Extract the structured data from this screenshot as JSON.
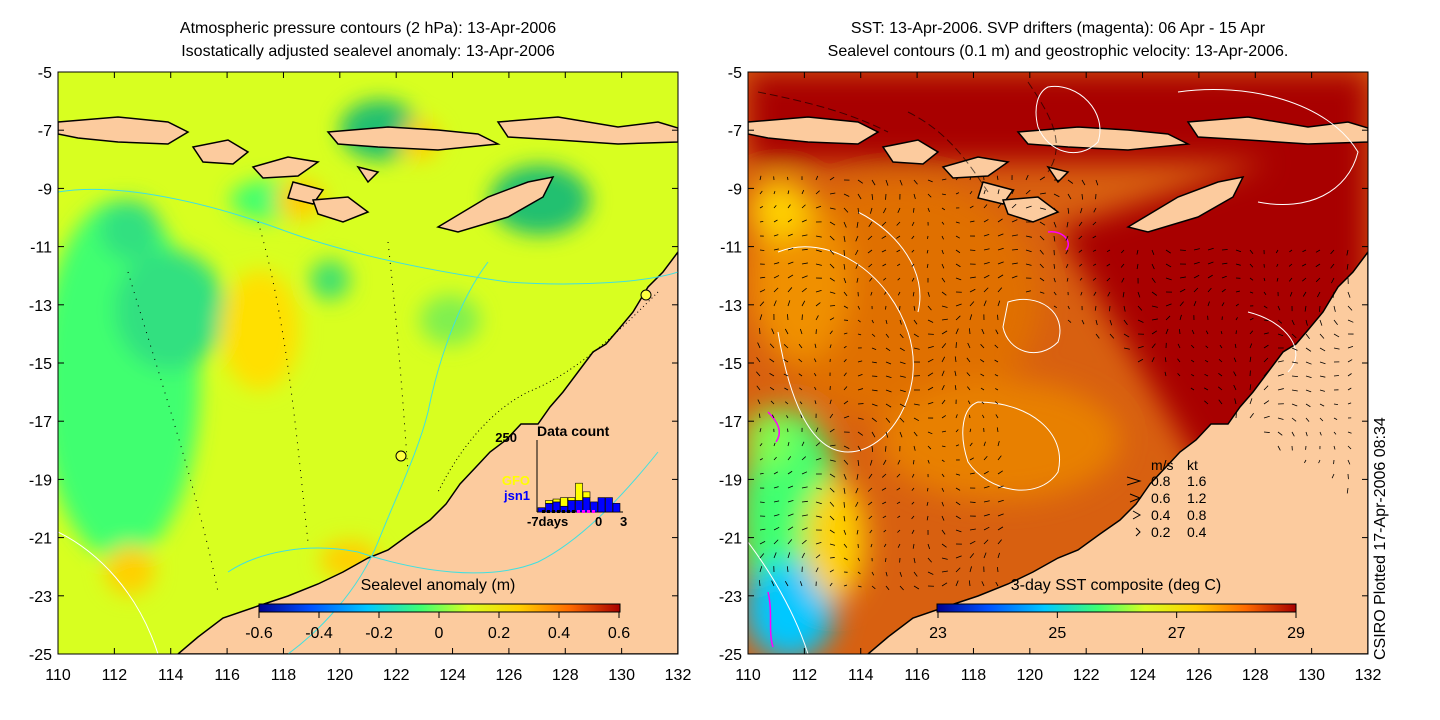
{
  "left_panel": {
    "title_line1": "Atmospheric pressure contours (2 hPa): 13-Apr-2006",
    "title_line2": "Isostatically adjusted sealevel anomaly: 13-Apr-2006",
    "colorbar_label": "Sealevel anomaly (m)",
    "colorbar_ticks": [
      "-0.6",
      "-0.4",
      "-0.2",
      "0",
      "0.2",
      "0.4",
      "0.6"
    ],
    "data_count": {
      "title": "Data count",
      "ymax_label": "250",
      "xaxis_labels": [
        "-7days",
        "0",
        "3"
      ],
      "legend": [
        {
          "name": "GFO",
          "color": "#ffff00"
        },
        {
          "name": "jsn1",
          "color": "#0000ff"
        }
      ],
      "bars": [
        {
          "day": -7,
          "jsn1": 15,
          "gfo": 0
        },
        {
          "day": -6,
          "jsn1": 30,
          "gfo": 10
        },
        {
          "day": -5,
          "jsn1": 35,
          "gfo": 10
        },
        {
          "day": -4,
          "jsn1": 20,
          "gfo": 30
        },
        {
          "day": -3,
          "jsn1": 40,
          "gfo": 10
        },
        {
          "day": -2,
          "jsn1": 40,
          "gfo": 60
        },
        {
          "day": -1,
          "jsn1": 50,
          "gfo": 20
        },
        {
          "day": 0,
          "jsn1": 35,
          "gfo": 0
        },
        {
          "day": 1,
          "jsn1": 50,
          "gfo": 0
        },
        {
          "day": 2,
          "jsn1": 50,
          "gfo": 0
        },
        {
          "day": 3,
          "jsn1": 30,
          "gfo": 0
        }
      ]
    }
  },
  "right_panel": {
    "title_line1": "SST: 13-Apr-2006. SVP drifters (magenta): 06 Apr - 15 Apr",
    "title_line2": "Sealevel contours (0.1 m) and geostrophic velocity: 13-Apr-2006.",
    "colorbar_label": "3-day SST composite (deg C)",
    "colorbar_ticks": [
      "23",
      "25",
      "27",
      "29"
    ],
    "velocity_legend": {
      "header_ms": "m/s",
      "header_kt": "kt",
      "rows": [
        {
          "ms": "0.8",
          "kt": "1.6"
        },
        {
          "ms": "0.6",
          "kt": "1.2"
        },
        {
          "ms": "0.4",
          "kt": "0.8"
        },
        {
          "ms": "0.2",
          "kt": "0.4"
        }
      ]
    }
  },
  "axes": {
    "lon_ticks": [
      "110",
      "112",
      "114",
      "116",
      "118",
      "120",
      "122",
      "124",
      "126",
      "128",
      "130",
      "132"
    ],
    "lat_ticks": [
      "-5",
      "-7",
      "-9",
      "-11",
      "-13",
      "-15",
      "-17",
      "-19",
      "-21",
      "-23",
      "-25"
    ],
    "lon_range": [
      110,
      132
    ],
    "lat_range": [
      -25,
      -5
    ]
  },
  "credit": "CSIRO Plotted 17-Apr-2006 08:34",
  "colors": {
    "land": "#fccb9e",
    "coast": "#000000",
    "sla_colormap": [
      "#00008f",
      "#0050ff",
      "#00c8ff",
      "#40ff70",
      "#d8ff20",
      "#ffd000",
      "#ff6a00",
      "#a80000"
    ],
    "sst_colormap": [
      "#00008f",
      "#0050ff",
      "#00c8ff",
      "#40ff70",
      "#d8ff20",
      "#ffd000",
      "#ff6a00",
      "#a80000"
    ]
  }
}
